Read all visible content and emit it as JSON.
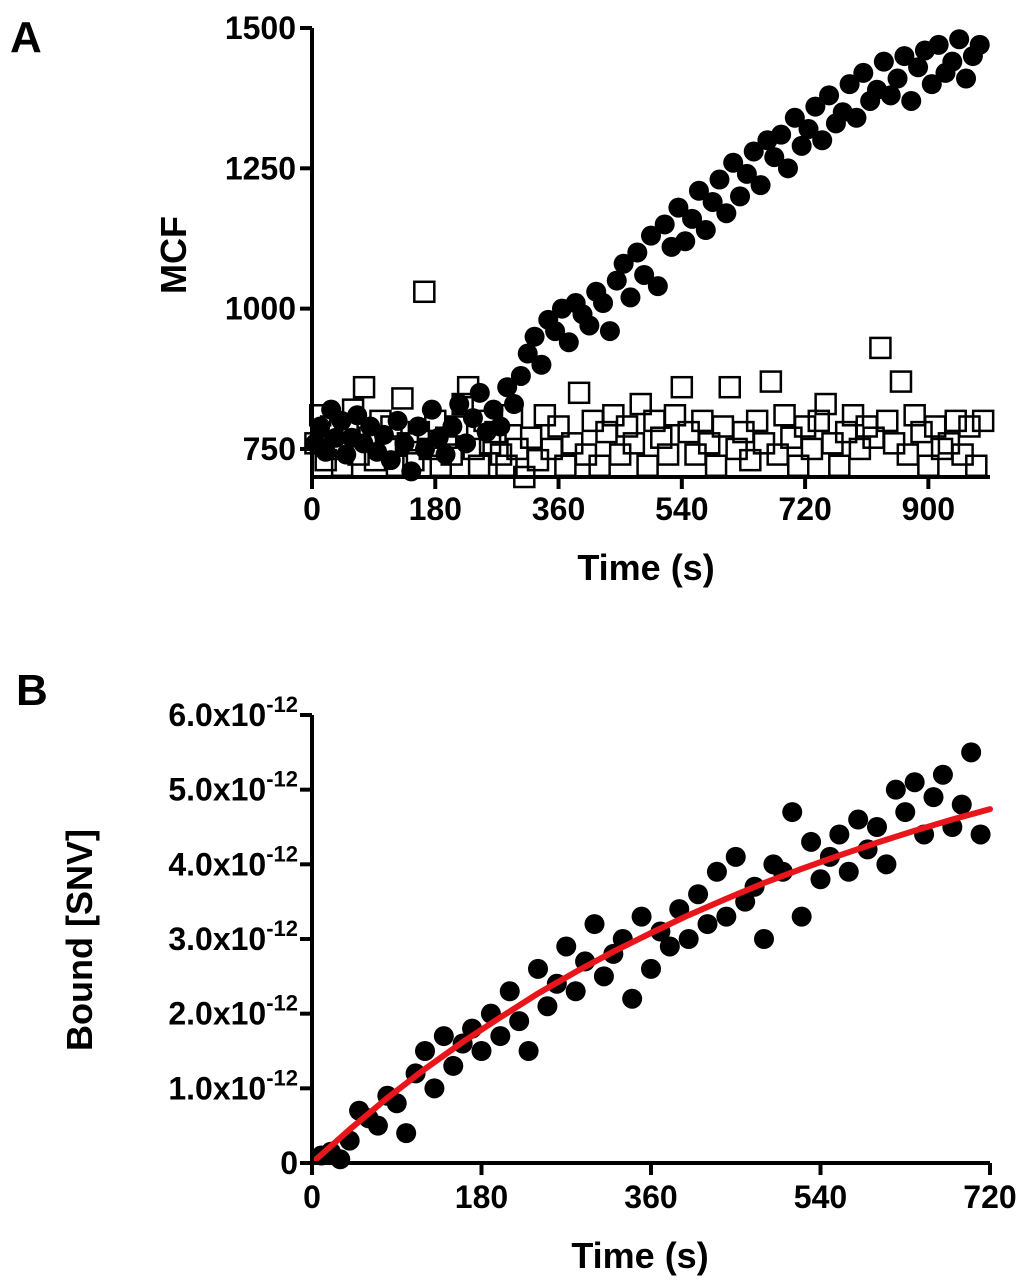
{
  "figure": {
    "colors": {
      "axis": "#000000",
      "marker": "#000000",
      "fit_line": "#e8151b",
      "background": "#ffffff"
    }
  },
  "chart_data": [
    {
      "id": "A",
      "panel_label": "A",
      "type": "scatter",
      "title": "",
      "xlabel": "Time (s)",
      "ylabel": "MCF",
      "xlim": [
        0,
        990
      ],
      "ylim": [
        700,
        1500
      ],
      "x_ticks": [
        0,
        180,
        360,
        540,
        720,
        900
      ],
      "x_tick_labels": [
        "0",
        "180",
        "360",
        "540",
        "720",
        "900"
      ],
      "y_ticks": [
        750,
        1000,
        1250,
        1500
      ],
      "y_tick_labels": [
        "750",
        "1000",
        "1250",
        "1500"
      ],
      "series": [
        {
          "name": "filled circles",
          "marker": "filled-circle",
          "x": [
            5,
            12,
            20,
            28,
            35,
            43,
            50,
            58,
            66,
            75,
            85,
            95,
            105,
            115,
            125,
            135,
            145,
            155,
            165,
            175,
            185,
            195,
            205,
            215,
            225,
            235,
            245,
            255,
            265,
            275,
            285,
            295,
            305,
            315,
            325,
            335,
            345,
            355,
            365,
            375,
            385,
            395,
            405,
            415,
            425,
            435,
            445,
            455,
            465,
            475,
            485,
            495,
            505,
            515,
            525,
            535,
            545,
            555,
            565,
            575,
            585,
            595,
            605,
            615,
            625,
            635,
            645,
            655,
            665,
            675,
            685,
            695,
            705,
            715,
            725,
            735,
            745,
            755,
            765,
            775,
            785,
            795,
            805,
            815,
            825,
            835,
            845,
            855,
            865,
            875,
            885,
            895,
            905,
            915,
            925,
            935,
            945,
            955,
            965,
            975
          ],
          "y": [
            760,
            790,
            745,
            820,
            770,
            800,
            740,
            770,
            810,
            760,
            790,
            745,
            775,
            730,
            800,
            760,
            710,
            790,
            750,
            820,
            770,
            740,
            790,
            830,
            760,
            805,
            850,
            780,
            820,
            790,
            860,
            830,
            880,
            920,
            950,
            900,
            980,
            960,
            1000,
            940,
            1010,
            990,
            970,
            1030,
            1010,
            960,
            1050,
            1080,
            1020,
            1100,
            1060,
            1130,
            1040,
            1150,
            1110,
            1180,
            1120,
            1160,
            1210,
            1140,
            1190,
            1230,
            1170,
            1260,
            1200,
            1240,
            1280,
            1220,
            1300,
            1270,
            1310,
            1250,
            1340,
            1290,
            1320,
            1360,
            1300,
            1380,
            1330,
            1350,
            1400,
            1340,
            1420,
            1370,
            1390,
            1440,
            1380,
            1410,
            1450,
            1370,
            1430,
            1460,
            1400,
            1470,
            1420,
            1440,
            1480,
            1410,
            1450,
            1470
          ]
        },
        {
          "name": "open squares",
          "marker": "open-square",
          "x": [
            5,
            12,
            20,
            28,
            36,
            44,
            52,
            60,
            68,
            76,
            84,
            92,
            100,
            108,
            116,
            124,
            132,
            140,
            148,
            156,
            164,
            172,
            180,
            188,
            196,
            204,
            212,
            220,
            228,
            236,
            244,
            252,
            260,
            268,
            276,
            284,
            292,
            300,
            310,
            320,
            330,
            340,
            350,
            360,
            370,
            380,
            390,
            400,
            410,
            420,
            430,
            440,
            450,
            460,
            470,
            480,
            490,
            500,
            510,
            520,
            530,
            540,
            550,
            560,
            570,
            580,
            590,
            600,
            610,
            620,
            630,
            640,
            650,
            660,
            670,
            680,
            690,
            700,
            710,
            720,
            730,
            740,
            750,
            760,
            770,
            780,
            790,
            800,
            810,
            820,
            830,
            840,
            850,
            860,
            870,
            880,
            890,
            900,
            910,
            920,
            930,
            940,
            950,
            960,
            970,
            980
          ],
          "y": [
            760,
            810,
            730,
            790,
            750,
            720,
            780,
            820,
            740,
            860,
            770,
            730,
            800,
            750,
            790,
            720,
            840,
            760,
            730,
            780,
            1030,
            750,
            800,
            720,
            770,
            740,
            790,
            830,
            860,
            750,
            720,
            800,
            760,
            780,
            740,
            720,
            810,
            750,
            700,
            770,
            730,
            810,
            750,
            790,
            720,
            760,
            850,
            740,
            800,
            720,
            780,
            810,
            740,
            790,
            760,
            830,
            720,
            800,
            770,
            740,
            810,
            860,
            780,
            740,
            800,
            760,
            720,
            790,
            860,
            750,
            780,
            730,
            800,
            760,
            870,
            740,
            810,
            770,
            720,
            790,
            750,
            800,
            830,
            760,
            720,
            780,
            810,
            750,
            790,
            770,
            930,
            800,
            760,
            870,
            740,
            810,
            780,
            720,
            790,
            750,
            760,
            800,
            740,
            790,
            720,
            800
          ]
        }
      ]
    },
    {
      "id": "B",
      "panel_label": "B",
      "type": "scatter",
      "title": "",
      "xlabel": "Time (s)",
      "ylabel": "Bound [SNV]",
      "xlim": [
        0,
        720
      ],
      "ylim": [
        0,
        6e-12
      ],
      "x_ticks": [
        0,
        180,
        360,
        540,
        720
      ],
      "x_tick_labels": [
        "0",
        "180",
        "360",
        "540",
        "720"
      ],
      "y_ticks": [
        0,
        1e-12,
        2e-12,
        3e-12,
        4e-12,
        5e-12,
        6e-12
      ],
      "y_tick_labels": [
        {
          "base": "0",
          "exp": ""
        },
        {
          "base": "1.0x10",
          "exp": "-12"
        },
        {
          "base": "2.0x10",
          "exp": "-12"
        },
        {
          "base": "3.0x10",
          "exp": "-12"
        },
        {
          "base": "4.0x10",
          "exp": "-12"
        },
        {
          "base": "5.0x10",
          "exp": "-12"
        },
        {
          "base": "6.0x10",
          "exp": "-12"
        }
      ],
      "series": [
        {
          "name": "data",
          "marker": "filled-circle",
          "x": [
            10,
            20,
            30,
            40,
            50,
            60,
            70,
            80,
            90,
            100,
            110,
            120,
            130,
            140,
            150,
            160,
            170,
            180,
            190,
            200,
            210,
            220,
            230,
            240,
            250,
            260,
            270,
            280,
            290,
            300,
            310,
            320,
            330,
            340,
            350,
            360,
            370,
            380,
            390,
            400,
            410,
            420,
            430,
            440,
            450,
            460,
            470,
            480,
            490,
            500,
            510,
            520,
            530,
            540,
            550,
            560,
            570,
            580,
            590,
            600,
            610,
            620,
            630,
            640,
            650,
            660,
            670,
            680,
            690,
            700,
            710
          ],
          "y": [
            1e-13,
            1.5e-13,
            5e-14,
            3e-13,
            7e-13,
            6e-13,
            5e-13,
            9e-13,
            8e-13,
            4e-13,
            1.2e-12,
            1.5e-12,
            1e-12,
            1.7e-12,
            1.3e-12,
            1.6e-12,
            1.8e-12,
            1.5e-12,
            2e-12,
            1.7e-12,
            2.3e-12,
            1.9e-12,
            1.5e-12,
            2.6e-12,
            2.1e-12,
            2.4e-12,
            2.9e-12,
            2.3e-12,
            2.7e-12,
            3.2e-12,
            2.5e-12,
            2.8e-12,
            3e-12,
            2.2e-12,
            3.3e-12,
            2.6e-12,
            3.1e-12,
            2.9e-12,
            3.4e-12,
            3e-12,
            3.6e-12,
            3.2e-12,
            3.9e-12,
            3.3e-12,
            4.1e-12,
            3.5e-12,
            3.7e-12,
            3e-12,
            4e-12,
            3.9e-12,
            4.7e-12,
            3.3e-12,
            4.3e-12,
            3.8e-12,
            4.1e-12,
            4.4e-12,
            3.9e-12,
            4.6e-12,
            4.2e-12,
            4.5e-12,
            4e-12,
            5e-12,
            4.7e-12,
            5.1e-12,
            4.4e-12,
            4.9e-12,
            5.2e-12,
            4.5e-12,
            4.8e-12,
            5.5e-12,
            4.4e-12
          ]
        },
        {
          "name": "fit",
          "type": "line",
          "x": [
            0,
            40,
            80,
            120,
            160,
            200,
            240,
            280,
            320,
            360,
            400,
            440,
            480,
            520,
            560,
            600,
            640,
            680,
            720
          ],
          "y": [
            0.0,
            4.5e-13,
            8.7e-13,
            1.26e-12,
            1.62e-12,
            1.95e-12,
            2.27e-12,
            2.56e-12,
            2.83e-12,
            3.08e-12,
            3.32e-12,
            3.54e-12,
            3.75e-12,
            3.94e-12,
            4.12e-12,
            4.29e-12,
            4.45e-12,
            4.6e-12,
            4.74e-12
          ]
        }
      ]
    }
  ]
}
